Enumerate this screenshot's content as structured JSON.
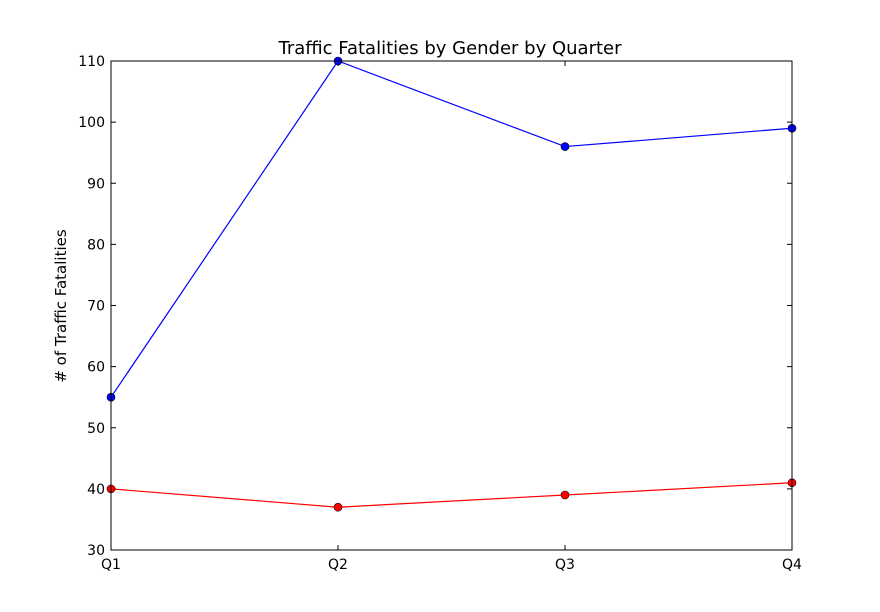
{
  "chart_data": {
    "type": "line",
    "title": "Traffic Fatalities by Gender by Quarter",
    "xlabel": "",
    "ylabel": "# of Traffic Fatalities",
    "categories": [
      "Q1",
      "Q2",
      "Q3",
      "Q4"
    ],
    "ylim": [
      30,
      110
    ],
    "yticks": [
      30,
      40,
      50,
      60,
      70,
      80,
      90,
      100,
      110
    ],
    "grid": false,
    "legend": "none",
    "series": [
      {
        "color": "#0000ff",
        "marker": "circle",
        "values": [
          55,
          110,
          96,
          99
        ]
      },
      {
        "color": "#ff0000",
        "marker": "circle",
        "values": [
          40,
          37,
          39,
          41
        ]
      }
    ]
  }
}
